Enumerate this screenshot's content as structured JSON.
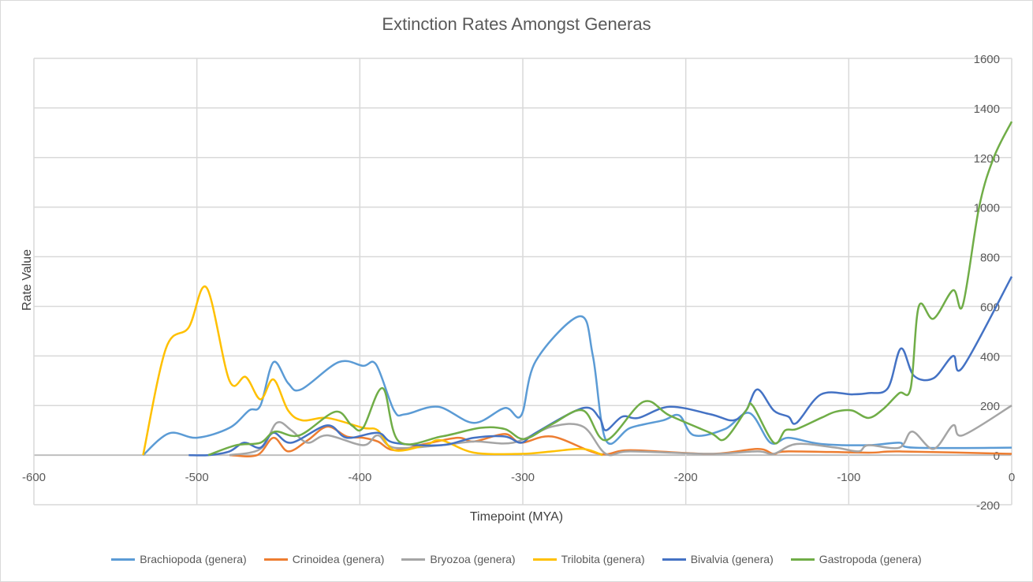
{
  "chart_data": {
    "type": "line",
    "title": "Extinction Rates Amongst Generas",
    "xlabel": "Timepoint (MYA)",
    "ylabel": "Rate Value",
    "xlim": [
      -600,
      0
    ],
    "ylim": [
      -200,
      1600
    ],
    "xticks": [
      -600,
      -500,
      -400,
      -300,
      -200,
      -100,
      0
    ],
    "yticks": [
      -200,
      0,
      200,
      400,
      600,
      800,
      1000,
      1200,
      1400,
      1600
    ],
    "y_axis_side": "right",
    "grid": true,
    "legend_position": "bottom",
    "series": [
      {
        "name": "Brachiopoda (genera)",
        "color": "#5B9BD5",
        "points": [
          [
            -533,
            0
          ],
          [
            -517,
            88
          ],
          [
            -500,
            70
          ],
          [
            -480,
            110
          ],
          [
            -468,
            180
          ],
          [
            -461,
            200
          ],
          [
            -453,
            375
          ],
          [
            -444,
            290
          ],
          [
            -436,
            265
          ],
          [
            -413,
            375
          ],
          [
            -398,
            360
          ],
          [
            -390,
            365
          ],
          [
            -379,
            180
          ],
          [
            -372,
            165
          ],
          [
            -352,
            195
          ],
          [
            -330,
            130
          ],
          [
            -311,
            190
          ],
          [
            -301,
            160
          ],
          [
            -292,
            380
          ],
          [
            -265,
            560
          ],
          [
            -257,
            400
          ],
          [
            -249,
            60
          ],
          [
            -234,
            110
          ],
          [
            -214,
            140
          ],
          [
            -204,
            160
          ],
          [
            -195,
            80
          ],
          [
            -176,
            105
          ],
          [
            -161,
            170
          ],
          [
            -148,
            50
          ],
          [
            -137,
            70
          ],
          [
            -117,
            45
          ],
          [
            -88,
            40
          ],
          [
            -69,
            50
          ],
          [
            -60,
            30
          ],
          [
            0,
            30
          ]
        ]
      },
      {
        "name": "Crinoidea (genera)",
        "color": "#ED7D31",
        "points": [
          [
            -480,
            0
          ],
          [
            -463,
            0
          ],
          [
            -453,
            70
          ],
          [
            -444,
            15
          ],
          [
            -432,
            60
          ],
          [
            -420,
            115
          ],
          [
            -408,
            75
          ],
          [
            -398,
            70
          ],
          [
            -389,
            55
          ],
          [
            -379,
            20
          ],
          [
            -360,
            45
          ],
          [
            -340,
            70
          ],
          [
            -330,
            55
          ],
          [
            -311,
            85
          ],
          [
            -301,
            50
          ],
          [
            -282,
            75
          ],
          [
            -253,
            5
          ],
          [
            -234,
            20
          ],
          [
            -185,
            5
          ],
          [
            -156,
            25
          ],
          [
            -146,
            5
          ],
          [
            -137,
            15
          ],
          [
            -88,
            10
          ],
          [
            -69,
            15
          ],
          [
            0,
            5
          ]
        ]
      },
      {
        "name": "Bryozoa (genera)",
        "color": "#A5A5A5",
        "points": [
          [
            -480,
            0
          ],
          [
            -461,
            25
          ],
          [
            -451,
            130
          ],
          [
            -442,
            100
          ],
          [
            -432,
            50
          ],
          [
            -420,
            80
          ],
          [
            -398,
            40
          ],
          [
            -389,
            80
          ],
          [
            -379,
            30
          ],
          [
            -350,
            40
          ],
          [
            -330,
            55
          ],
          [
            -306,
            50
          ],
          [
            -282,
            115
          ],
          [
            -263,
            115
          ],
          [
            -249,
            5
          ],
          [
            -234,
            15
          ],
          [
            -185,
            5
          ],
          [
            -156,
            15
          ],
          [
            -146,
            5
          ],
          [
            -132,
            45
          ],
          [
            -108,
            30
          ],
          [
            -94,
            15
          ],
          [
            -88,
            40
          ],
          [
            -69,
            30
          ],
          [
            -61,
            95
          ],
          [
            -48,
            25
          ],
          [
            -36,
            120
          ],
          [
            -30,
            80
          ],
          [
            0,
            200
          ]
        ]
      },
      {
        "name": "Trilobita (genera)",
        "color": "#FFC000",
        "points": [
          [
            -533,
            0
          ],
          [
            -519,
            430
          ],
          [
            -505,
            515
          ],
          [
            -494,
            675
          ],
          [
            -480,
            300
          ],
          [
            -470,
            315
          ],
          [
            -461,
            225
          ],
          [
            -453,
            305
          ],
          [
            -444,
            180
          ],
          [
            -435,
            140
          ],
          [
            -420,
            150
          ],
          [
            -398,
            110
          ],
          [
            -389,
            100
          ],
          [
            -379,
            20
          ],
          [
            -360,
            40
          ],
          [
            -350,
            60
          ],
          [
            -330,
            10
          ],
          [
            -301,
            5
          ],
          [
            -282,
            15
          ],
          [
            -263,
            25
          ],
          [
            -251,
            0
          ]
        ]
      },
      {
        "name": "Bivalvia (genera)",
        "color": "#4472C4",
        "points": [
          [
            -505,
            0
          ],
          [
            -493,
            0
          ],
          [
            -480,
            15
          ],
          [
            -471,
            50
          ],
          [
            -461,
            30
          ],
          [
            -453,
            90
          ],
          [
            -442,
            50
          ],
          [
            -420,
            120
          ],
          [
            -408,
            70
          ],
          [
            -389,
            90
          ],
          [
            -379,
            50
          ],
          [
            -350,
            40
          ],
          [
            -330,
            70
          ],
          [
            -311,
            75
          ],
          [
            -301,
            50
          ],
          [
            -292,
            90
          ],
          [
            -263,
            190
          ],
          [
            -253,
            150
          ],
          [
            -249,
            100
          ],
          [
            -239,
            155
          ],
          [
            -229,
            150
          ],
          [
            -210,
            195
          ],
          [
            -185,
            165
          ],
          [
            -171,
            140
          ],
          [
            -163,
            180
          ],
          [
            -156,
            265
          ],
          [
            -146,
            180
          ],
          [
            -137,
            155
          ],
          [
            -132,
            130
          ],
          [
            -117,
            245
          ],
          [
            -98,
            245
          ],
          [
            -88,
            250
          ],
          [
            -76,
            270
          ],
          [
            -68,
            430
          ],
          [
            -60,
            320
          ],
          [
            -48,
            310
          ],
          [
            -36,
            400
          ],
          [
            -30,
            355
          ],
          [
            0,
            720
          ]
        ]
      },
      {
        "name": "Gastropoda (genera)",
        "color": "#70AD47",
        "points": [
          [
            -493,
            0
          ],
          [
            -476,
            40
          ],
          [
            -461,
            50
          ],
          [
            -452,
            95
          ],
          [
            -437,
            80
          ],
          [
            -415,
            175
          ],
          [
            -405,
            120
          ],
          [
            -398,
            110
          ],
          [
            -386,
            270
          ],
          [
            -376,
            55
          ],
          [
            -350,
            75
          ],
          [
            -326,
            110
          ],
          [
            -311,
            105
          ],
          [
            -299,
            65
          ],
          [
            -282,
            125
          ],
          [
            -263,
            180
          ],
          [
            -249,
            60
          ],
          [
            -226,
            215
          ],
          [
            -210,
            160
          ],
          [
            -185,
            90
          ],
          [
            -176,
            65
          ],
          [
            -163,
            180
          ],
          [
            -159,
            200
          ],
          [
            -146,
            50
          ],
          [
            -139,
            100
          ],
          [
            -132,
            105
          ],
          [
            -117,
            150
          ],
          [
            -108,
            175
          ],
          [
            -98,
            180
          ],
          [
            -88,
            150
          ],
          [
            -79,
            185
          ],
          [
            -69,
            250
          ],
          [
            -62,
            270
          ],
          [
            -57,
            600
          ],
          [
            -48,
            550
          ],
          [
            -36,
            665
          ],
          [
            -30,
            605
          ],
          [
            -20,
            1000
          ],
          [
            -11,
            1200
          ],
          [
            0,
            1345
          ]
        ]
      }
    ]
  }
}
